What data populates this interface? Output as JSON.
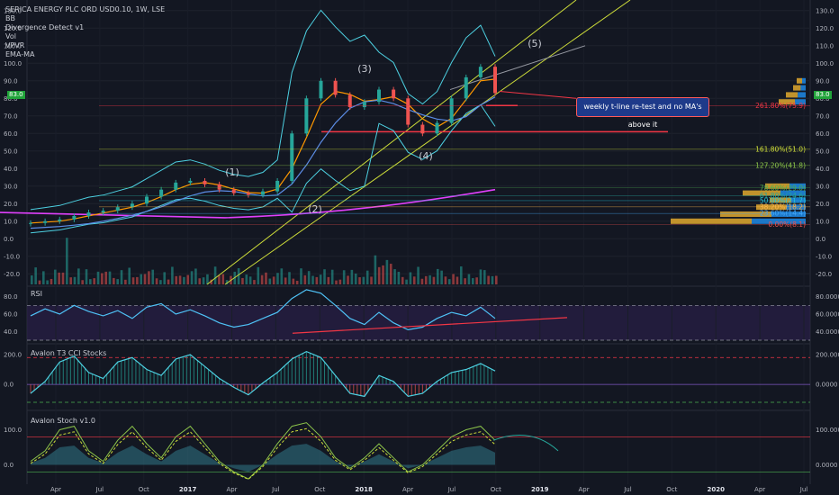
{
  "header": {
    "symbol_line": "SERICA ENERGY PLC ORD USD0.10, 1W, LSE",
    "indicators": [
      "BB",
      "Divergence Detect v1",
      "Vol",
      "VPVR",
      "EMA-MA"
    ]
  },
  "last_price": "83.0",
  "panes": {
    "rsi_title": "RSI",
    "cci_title": "Avalon T3 CCI Stocks",
    "stoch_title": "Avalon Stoch v1.0"
  },
  "callout": "weekly t-line re-test and no MA's above it",
  "waves": [
    "(1)",
    "(2)",
    "(3)",
    "(4)",
    "(5)"
  ],
  "fib_levels": [
    {
      "label": "261.80%(75.9)",
      "value": 75.9,
      "color": "#f23645"
    },
    {
      "label": "161.80%(51.0)",
      "value": 51.0,
      "color": "#cddc39"
    },
    {
      "label": "127.20%(41.8)",
      "value": 41.8,
      "color": "#8bc34a"
    },
    {
      "label": "78.60%(29.0)",
      "value": 29.0,
      "color": "#4caf50"
    },
    {
      "label": "61.80%(24.6)",
      "value": 24.6,
      "color": "#26a69a"
    },
    {
      "label": "50.00%(21.7)",
      "value": 21.7,
      "color": "#26c6da"
    },
    {
      "label": "38.20%(18.2)",
      "value": 18.2,
      "color": "#ffb74d"
    },
    {
      "label": "23.60%(14.4)",
      "value": 14.4,
      "color": "#42a5f5"
    },
    {
      "label": "0.00%(8.1)",
      "value": 8.1,
      "color": "#ef5350"
    }
  ],
  "chart_data": [
    {
      "type": "line",
      "pane": "price",
      "y_ticks": [
        130.0,
        120.0,
        110.0,
        100.0,
        90.0,
        80.0,
        70.0,
        60.0,
        50.0,
        40.0,
        30.0,
        20.0,
        10.0,
        0.0,
        -10.0,
        -20.0
      ],
      "ylim": [
        -26,
        134
      ],
      "x_labels": [
        "Apr",
        "Jul",
        "Oct",
        "2017",
        "Apr",
        "Jul",
        "Oct",
        "2018",
        "Apr",
        "Jul",
        "Oct",
        "2019",
        "Apr",
        "Jul",
        "Oct",
        "2020",
        "Apr",
        "Jul"
      ],
      "series": [
        {
          "values": [
            9,
            10,
            11,
            13,
            15,
            16,
            18,
            20,
            24,
            28,
            32,
            33,
            31,
            28,
            26,
            25,
            27,
            33,
            60,
            80,
            90,
            82,
            75,
            78,
            85,
            80,
            65,
            60,
            66,
            80,
            92,
            98,
            83
          ]
        }
      ]
    },
    {
      "type": "line",
      "pane": "rsi",
      "y_ticks": [
        80.0,
        60.0,
        40.0
      ],
      "ylim": [
        30,
        90
      ],
      "series": [
        {
          "values": [
            58,
            66,
            60,
            70,
            63,
            58,
            64,
            55,
            68,
            72,
            60,
            65,
            58,
            50,
            45,
            48,
            55,
            62,
            78,
            88,
            84,
            70,
            55,
            48,
            62,
            50,
            42,
            45,
            55,
            62,
            58,
            68,
            55
          ]
        }
      ]
    },
    {
      "type": "line",
      "pane": "cci",
      "y_ticks": [
        200.0,
        0.0
      ],
      "ylim": [
        -150,
        260
      ],
      "series": [
        {
          "values": [
            -60,
            20,
            150,
            190,
            80,
            40,
            150,
            180,
            100,
            60,
            170,
            200,
            120,
            40,
            -20,
            -70,
            10,
            80,
            170,
            220,
            180,
            60,
            -60,
            -80,
            60,
            20,
            -80,
            -60,
            20,
            80,
            100,
            140,
            90
          ]
        }
      ]
    },
    {
      "type": "line",
      "pane": "stoch",
      "y_ticks": [
        100.0,
        0.0
      ],
      "ylim": [
        -50,
        150
      ],
      "series": [
        {
          "values": [
            10,
            40,
            100,
            110,
            40,
            10,
            70,
            110,
            60,
            20,
            80,
            110,
            60,
            10,
            -20,
            -40,
            0,
            60,
            110,
            120,
            80,
            20,
            -10,
            20,
            60,
            20,
            -20,
            0,
            40,
            80,
            100,
            110,
            70
          ]
        }
      ]
    }
  ]
}
